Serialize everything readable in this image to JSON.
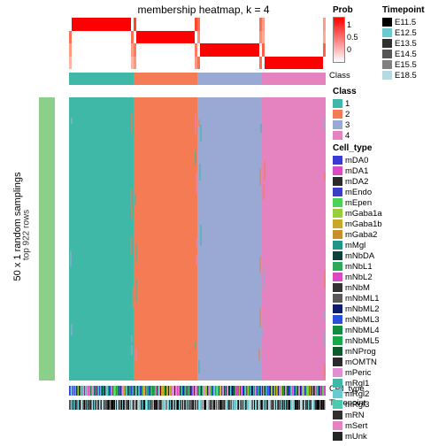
{
  "title": "membership heatmap, k = 4",
  "left_label": "50 x 1 random samplings",
  "row_annotation_label": "top 922 rows",
  "row_annotation_color": "#8ccf8a",
  "class_strip_label": "Class",
  "celltype_strip_label": "Cell_type",
  "timepoint_strip_label": "Timepoint",
  "prob_legend": {
    "title": "Prob",
    "min": 0,
    "max": 1,
    "ticks": [
      "1",
      "0.5",
      "0"
    ],
    "gradient_top": "#ff0000",
    "gradient_bottom": "#ffffff"
  },
  "class_legend": {
    "title": "Class",
    "items": [
      {
        "label": "1",
        "color": "#3fb8a8"
      },
      {
        "label": "2",
        "color": "#f47b54"
      },
      {
        "label": "3",
        "color": "#9aa8d4"
      },
      {
        "label": "4",
        "color": "#e583c1"
      }
    ]
  },
  "timepoint_legend": {
    "title": "Timepoint",
    "items": [
      {
        "label": "E11.5",
        "color": "#000000"
      },
      {
        "label": "E12.5",
        "color": "#6bcad0"
      },
      {
        "label": "E13.5",
        "color": "#2f2f2f"
      },
      {
        "label": "E14.5",
        "color": "#555555"
      },
      {
        "label": "E15.5",
        "color": "#808080"
      },
      {
        "label": "E18.5",
        "color": "#b5dbe0"
      }
    ]
  },
  "celltype_legend": {
    "title": "Cell_type",
    "items": [
      {
        "label": "mDA0",
        "color": "#3a3ad4"
      },
      {
        "label": "mDA1",
        "color": "#d94bc3"
      },
      {
        "label": "mDA2",
        "color": "#2a2a2a"
      },
      {
        "label": "mEndo",
        "color": "#3b3fc5"
      },
      {
        "label": "mEpen",
        "color": "#4cd25a"
      },
      {
        "label": "mGaba1a",
        "color": "#9bcc3c"
      },
      {
        "label": "mGaba1b",
        "color": "#c9a827"
      },
      {
        "label": "mGaba2",
        "color": "#c78e2a"
      },
      {
        "label": "mMgl",
        "color": "#1f9587"
      },
      {
        "label": "mNbDA",
        "color": "#0f3f3a"
      },
      {
        "label": "mNbL1",
        "color": "#2fa85c"
      },
      {
        "label": "mNbL2",
        "color": "#d94bc3"
      },
      {
        "label": "mNbM",
        "color": "#333333"
      },
      {
        "label": "mNbML1",
        "color": "#5a5a5a"
      },
      {
        "label": "mNbML2",
        "color": "#0b1d6b"
      },
      {
        "label": "mNbML3",
        "color": "#2a50d8"
      },
      {
        "label": "mNbML4",
        "color": "#128c3e"
      },
      {
        "label": "mNbML5",
        "color": "#17a84a"
      },
      {
        "label": "mNProg",
        "color": "#0c5c2b"
      },
      {
        "label": "mOMTN",
        "color": "#2b2b2b"
      },
      {
        "label": "mPeric",
        "color": "#e08fd4"
      },
      {
        "label": "mRgl1",
        "color": "#3fb8a8"
      },
      {
        "label": "mRgl2",
        "color": "#6bcad0"
      },
      {
        "label": "mRgl3",
        "color": "#4bc9b3"
      },
      {
        "label": "mRN",
        "color": "#303030"
      },
      {
        "label": "mSert",
        "color": "#e583c1"
      },
      {
        "label": "mUnk",
        "color": "#242424"
      }
    ]
  },
  "prob_rows": [
    [
      {
        "c": "#ff0000",
        "b": "#ffffff"
      },
      {
        "c": "#ffffff",
        "b": "#ff4825"
      },
      {
        "c": "#ffffff",
        "b": "#ff6e52"
      },
      {
        "c": "#ffffff",
        "b": "#ff9a85"
      }
    ],
    [
      {
        "c": "#ffffff",
        "b": "#ff6e52"
      },
      {
        "c": "#ff0000",
        "b": "#ffffff"
      },
      {
        "c": "#ffffff",
        "b": "#ff8e75"
      },
      {
        "c": "#ffffff",
        "b": "#ffa892"
      }
    ],
    [
      {
        "c": "#ffffff",
        "b": "#ff9a85"
      },
      {
        "c": "#ffffff",
        "b": "#ff7a60"
      },
      {
        "c": "#ff0000",
        "b": "#ffffff"
      },
      {
        "c": "#ffffff",
        "b": "#ff6048"
      }
    ],
    [
      {
        "c": "#ffffff",
        "b": "#ffb5a3"
      },
      {
        "c": "#ffffff",
        "b": "#ff9780"
      },
      {
        "c": "#ffffff",
        "b": "#ff6e52"
      },
      {
        "c": "#ff0000",
        "b": "#ffffff"
      }
    ]
  ],
  "class_colors": [
    "#3fb8a8",
    "#f47b54",
    "#9aa8d4",
    "#e583c1"
  ],
  "main_columns": [
    {
      "base": "#3fb8a8",
      "noise": [
        "#f47b54",
        "#9aa8d4"
      ]
    },
    {
      "base": "#f47b54",
      "noise": [
        "#3fb8a8",
        "#e583c1"
      ]
    },
    {
      "base": "#9aa8d4",
      "noise": [
        "#f47b54",
        "#3fb8a8"
      ]
    },
    {
      "base": "#e583c1",
      "noise": [
        "#9aa8d4",
        "#f47b54"
      ]
    }
  ],
  "celltype_palette": [
    "#3a3ad4",
    "#d94bc3",
    "#2a2a2a",
    "#4cd25a",
    "#9bcc3c",
    "#c9a827",
    "#1f9587",
    "#0f3f3a",
    "#2fa85c",
    "#5a5a5a",
    "#0b1d6b",
    "#2a50d8",
    "#128c3e",
    "#e08fd4",
    "#3fb8a8",
    "#6bcad0",
    "#e583c1"
  ],
  "timepoint_palette": [
    "#000000",
    "#6bcad0",
    "#2f2f2f",
    "#555555",
    "#808080",
    "#b5dbe0"
  ]
}
